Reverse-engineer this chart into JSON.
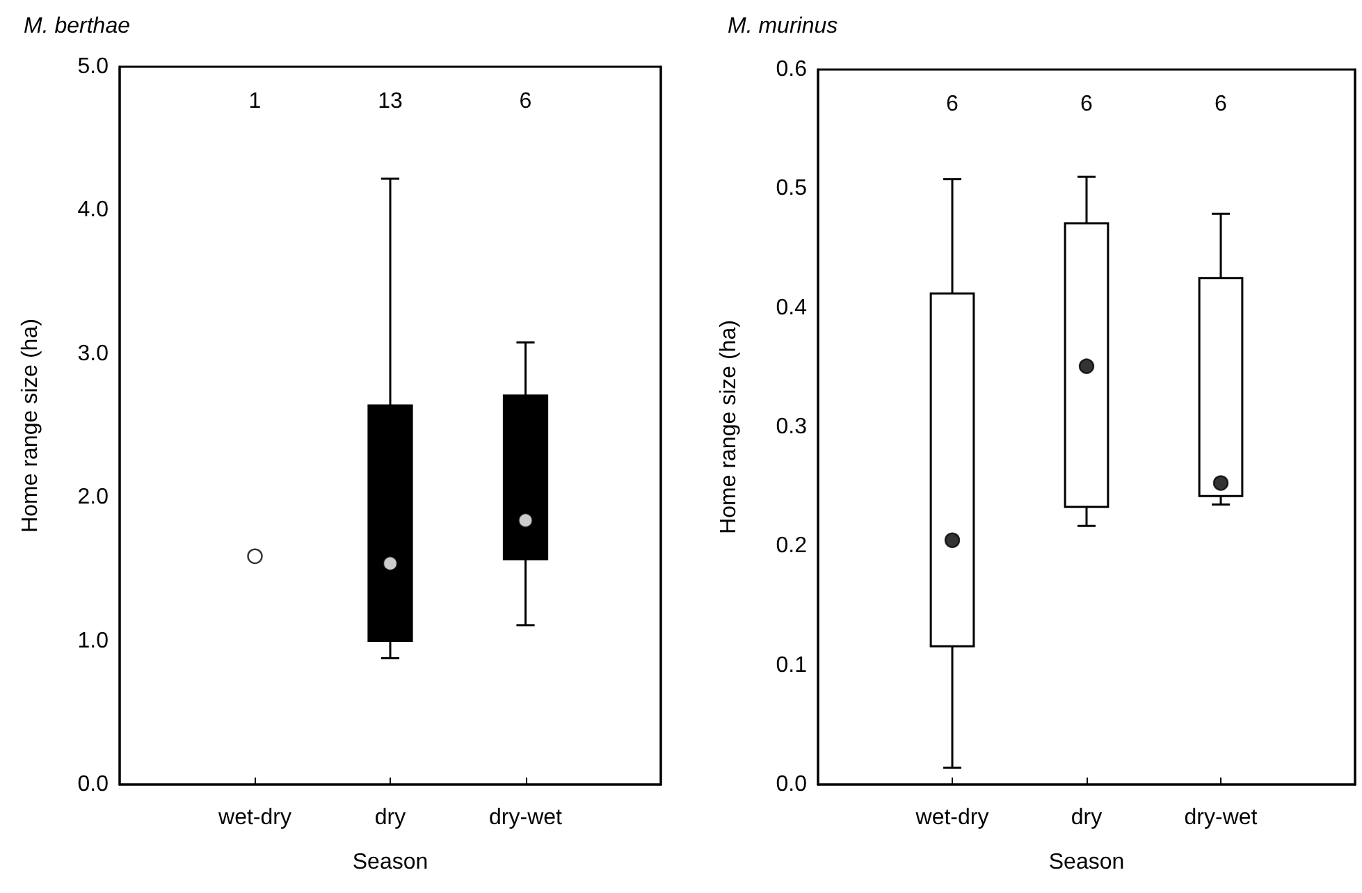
{
  "chart_data": [
    {
      "type": "box",
      "title": "M. berthae",
      "xlabel": "Season",
      "ylabel": "Home range size (ha)",
      "categories": [
        "wet-dry",
        "dry",
        "dry-wet"
      ],
      "series": [
        {
          "color": "#000000",
          "boxes": [
            null,
            {
              "low": 0.88,
              "q1": 1.0,
              "median": 1.54,
              "q3": 2.64,
              "high": 4.22
            },
            {
              "low": 1.11,
              "q1": 1.57,
              "median": 1.84,
              "q3": 2.71,
              "high": 3.08
            }
          ]
        },
        {
          "type": "scatter",
          "color": "#ffffff",
          "marker": "circle",
          "x": [
            "wet-dry"
          ],
          "values": [
            1.59
          ]
        }
      ],
      "ylim": [
        0,
        5
      ],
      "yticks": [
        {
          "value": 0,
          "label": "0.0"
        },
        {
          "value": 1,
          "label": "1.0"
        },
        {
          "value": 2,
          "label": "2.0"
        },
        {
          "value": 3,
          "label": "3.0"
        },
        {
          "value": 4,
          "label": "4.0"
        },
        {
          "value": 5,
          "label": "5.0"
        }
      ],
      "annotations": [
        "1",
        "13",
        "6"
      ]
    },
    {
      "type": "box",
      "title": "M. murinus",
      "xlabel": "Season",
      "ylabel": "Home range size (ha)",
      "categories": [
        "wet-dry",
        "dry",
        "dry-wet"
      ],
      "series": [
        {
          "color": "#ffffff",
          "boxes": [
            {
              "low": 0.014,
              "q1": 0.116,
              "median": 0.205,
              "q3": 0.412,
              "high": 0.508
            },
            {
              "low": 0.217,
              "q1": 0.233,
              "median": 0.351,
              "q3": 0.471,
              "high": 0.51
            },
            {
              "low": 0.235,
              "q1": 0.242,
              "median": 0.253,
              "q3": 0.425,
              "high": 0.479
            }
          ]
        }
      ],
      "ylim": [
        0,
        0.6
      ],
      "yticks": [
        {
          "value": 0,
          "label": "0.0"
        },
        {
          "value": 0.1,
          "label": "0.1"
        },
        {
          "value": 0.2,
          "label": "0.2"
        },
        {
          "value": 0.3,
          "label": "0.3"
        },
        {
          "value": 0.4,
          "label": "0.4"
        },
        {
          "value": 0.5,
          "label": "0.5"
        },
        {
          "value": 0.6,
          "label": "0.6"
        }
      ],
      "annotations": [
        "6",
        "6",
        "6"
      ]
    }
  ]
}
